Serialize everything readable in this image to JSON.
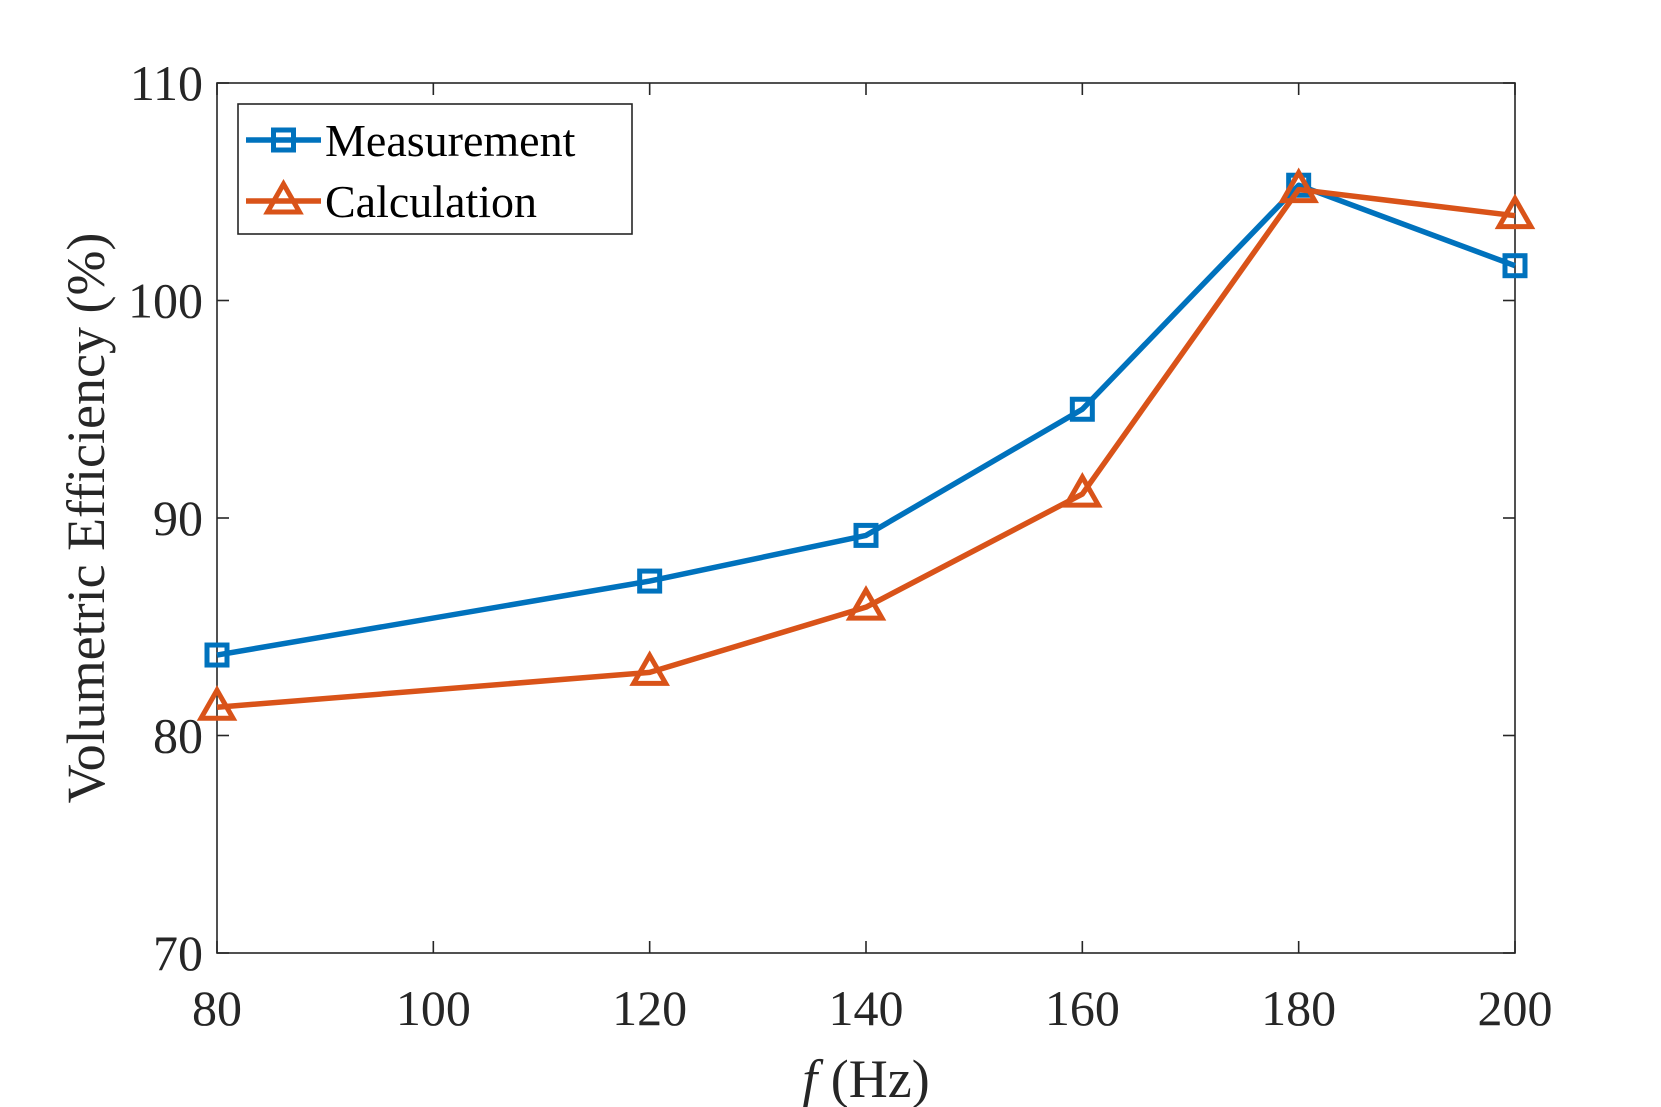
{
  "chart_data": {
    "type": "line",
    "title": "",
    "xlabel_italic": "f",
    "xlabel_rest": " (Hz)",
    "ylabel": "Volumetric Efficiency (%)",
    "xlim": [
      80,
      200
    ],
    "ylim": [
      70,
      110
    ],
    "xticks": [
      80,
      100,
      120,
      140,
      160,
      180,
      200
    ],
    "yticks": [
      70,
      80,
      90,
      100,
      110
    ],
    "grid": false,
    "legend_position": "top-left",
    "series": [
      {
        "name": "Measurement",
        "color": "#0072BD",
        "marker": "square",
        "x": [
          80,
          120,
          140,
          160,
          180,
          200
        ],
        "y": [
          83.7,
          87.1,
          89.2,
          95.0,
          105.3,
          101.6
        ]
      },
      {
        "name": "Calculation",
        "color": "#D95319",
        "marker": "triangle",
        "x": [
          80,
          120,
          140,
          160,
          180,
          200
        ],
        "y": [
          81.3,
          82.9,
          85.9,
          91.1,
          105.1,
          103.9
        ]
      }
    ]
  }
}
